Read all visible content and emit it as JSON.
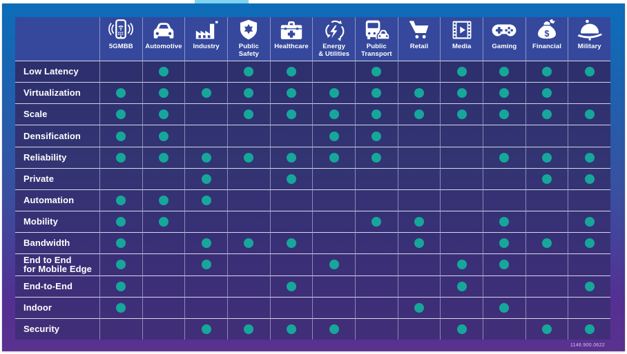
{
  "page": {
    "doc_code": "1146.900.0622"
  },
  "colors": {
    "dot": "#16a79a",
    "header_band": "#35489c",
    "panel_top": "#2b2d6b",
    "panel_bottom": "#412e79",
    "frame_top": "#0c6db9",
    "frame_bottom": "#5a318f",
    "top_tab": "#7fd3ef"
  },
  "columns": [
    {
      "label": "5GMBB",
      "lines": [
        "5GMBB"
      ],
      "icon": "smartphone-signal-icon"
    },
    {
      "label": "Automotive",
      "lines": [
        "Automotive"
      ],
      "icon": "car-icon"
    },
    {
      "label": "Industry",
      "lines": [
        "Industry"
      ],
      "icon": "factory-icon"
    },
    {
      "label": "Public Safety",
      "lines": [
        "Public",
        "Safety"
      ],
      "icon": "shield-star-icon"
    },
    {
      "label": "Healthcare",
      "lines": [
        "Healthcare"
      ],
      "icon": "first-aid-kit-icon"
    },
    {
      "label": "Energy & Utilities",
      "lines": [
        "Energy",
        "& Utilities"
      ],
      "icon": "recycle-lightning-icon"
    },
    {
      "label": "Public Transport",
      "lines": [
        "Public",
        "Transport"
      ],
      "icon": "bus-car-icon"
    },
    {
      "label": "Retail",
      "lines": [
        "Retail"
      ],
      "icon": "shopping-cart-icon"
    },
    {
      "label": "Media",
      "lines": [
        "Media"
      ],
      "icon": "film-play-icon"
    },
    {
      "label": "Gaming",
      "lines": [
        "Gaming"
      ],
      "icon": "gamepad-icon"
    },
    {
      "label": "Financial",
      "lines": [
        "Financial"
      ],
      "icon": "money-bag-icon"
    },
    {
      "label": "Military",
      "lines": [
        "Military"
      ],
      "icon": "military-helmet-icon"
    }
  ],
  "rows": [
    {
      "label": "Low Latency",
      "lines": [
        "Low Latency"
      ],
      "cells": [
        0,
        1,
        0,
        1,
        1,
        0,
        1,
        0,
        1,
        1,
        1,
        1
      ]
    },
    {
      "label": "Virtualization",
      "lines": [
        "Virtualization"
      ],
      "cells": [
        1,
        1,
        1,
        1,
        1,
        1,
        1,
        1,
        1,
        1,
        1,
        0
      ]
    },
    {
      "label": "Scale",
      "lines": [
        "Scale"
      ],
      "cells": [
        1,
        1,
        0,
        1,
        1,
        1,
        1,
        1,
        1,
        1,
        1,
        1
      ]
    },
    {
      "label": "Densification",
      "lines": [
        "Densification"
      ],
      "cells": [
        1,
        1,
        0,
        0,
        0,
        1,
        1,
        0,
        0,
        0,
        0,
        0
      ]
    },
    {
      "label": "Reliability",
      "lines": [
        "Reliability"
      ],
      "cells": [
        1,
        1,
        1,
        1,
        1,
        1,
        1,
        0,
        0,
        1,
        1,
        1
      ]
    },
    {
      "label": "Private",
      "lines": [
        "Private"
      ],
      "cells": [
        0,
        0,
        1,
        0,
        1,
        0,
        0,
        0,
        0,
        0,
        1,
        1
      ]
    },
    {
      "label": "Automation",
      "lines": [
        "Automation"
      ],
      "cells": [
        1,
        1,
        1,
        0,
        0,
        0,
        0,
        0,
        0,
        0,
        0,
        0
      ]
    },
    {
      "label": "Mobility",
      "lines": [
        "Mobility"
      ],
      "cells": [
        1,
        1,
        0,
        0,
        0,
        0,
        1,
        1,
        0,
        1,
        0,
        1
      ]
    },
    {
      "label": "Bandwidth",
      "lines": [
        "Bandwidth"
      ],
      "cells": [
        1,
        0,
        1,
        1,
        1,
        0,
        0,
        1,
        0,
        1,
        1,
        1
      ]
    },
    {
      "label": "End to End for Mobile Edge",
      "lines": [
        "End to End",
        "for Mobile Edge"
      ],
      "cells": [
        1,
        0,
        1,
        0,
        0,
        1,
        0,
        0,
        1,
        1,
        0,
        0
      ]
    },
    {
      "label": "End-to-End",
      "lines": [
        "End-to-End"
      ],
      "cells": [
        1,
        0,
        0,
        0,
        1,
        0,
        0,
        0,
        1,
        0,
        0,
        1
      ]
    },
    {
      "label": "Indoor",
      "lines": [
        "Indoor"
      ],
      "cells": [
        1,
        0,
        0,
        0,
        0,
        0,
        0,
        1,
        0,
        1,
        0,
        0
      ]
    },
    {
      "label": "Security",
      "lines": [
        "Security"
      ],
      "cells": [
        0,
        0,
        1,
        1,
        1,
        1,
        0,
        0,
        1,
        0,
        1,
        1
      ]
    }
  ]
}
